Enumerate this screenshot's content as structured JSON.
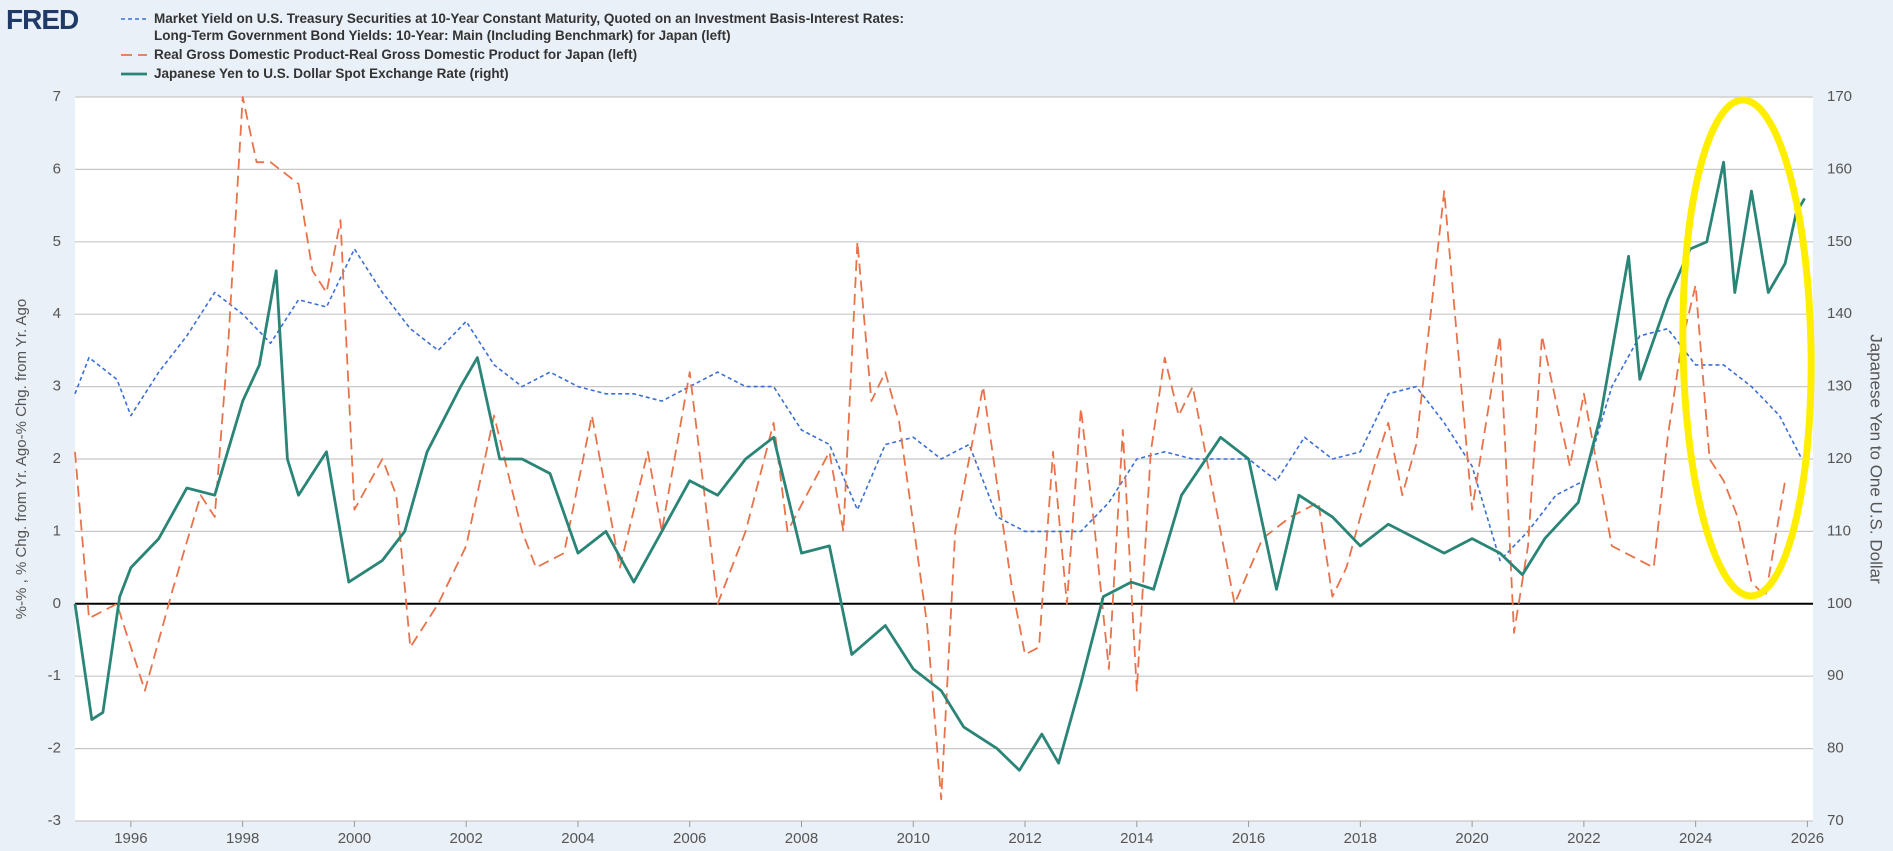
{
  "logo": "FRED",
  "chart_data": {
    "type": "line",
    "left_axis_label": "%-% , % Chg. from Yr. Ago-% Chg. from Yr. Ago",
    "right_axis_label": "Japanese Yen to One U.S. Dollar",
    "xlim": [
      1995.0,
      2026.1
    ],
    "xticks": [
      1996,
      1998,
      2000,
      2002,
      2004,
      2006,
      2008,
      2010,
      2012,
      2014,
      2016,
      2018,
      2020,
      2022,
      2024,
      2026
    ],
    "ylim": [
      -3,
      7
    ],
    "yticks": [
      -3,
      -2,
      -1,
      0,
      1,
      2,
      3,
      4,
      5,
      6,
      7
    ],
    "y2lim": [
      70,
      170
    ],
    "y2ticks": [
      70,
      80,
      90,
      100,
      110,
      120,
      130,
      140,
      150,
      160,
      170
    ],
    "grid": true,
    "series": [
      {
        "name": "Market Yield on U.S. Treasury Securities at 10-Year Constant Maturity, Quoted on an Investment Basis-Interest Rates: Long-Term Government Bond Yields: 10-Year: Main (Including Benchmark) for Japan (left)",
        "color": "#3b6fd8",
        "line_style": "dotted",
        "axis": "y",
        "x": [
          1995.0,
          1995.25,
          1995.75,
          1996.0,
          1996.5,
          1997.0,
          1997.5,
          1998.0,
          1998.5,
          1999.0,
          1999.5,
          2000.0,
          2000.5,
          2001.0,
          2001.5,
          2002.0,
          2002.5,
          2003.0,
          2003.5,
          2004.0,
          2004.5,
          2005.0,
          2005.5,
          2006.0,
          2006.5,
          2007.0,
          2007.5,
          2008.0,
          2008.5,
          2009.0,
          2009.5,
          2010.0,
          2010.5,
          2011.0,
          2011.5,
          2012.0,
          2012.5,
          2013.0,
          2013.5,
          2014.0,
          2014.5,
          2015.0,
          2015.5,
          2016.0,
          2016.5,
          2017.0,
          2017.5,
          2018.0,
          2018.5,
          2019.0,
          2019.5,
          2020.0,
          2020.5,
          2021.0,
          2021.5,
          2022.0,
          2022.5,
          2023.0,
          2023.5,
          2024.0,
          2024.5,
          2025.0,
          2025.5,
          2025.9
        ],
        "values": [
          2.9,
          3.4,
          3.1,
          2.6,
          3.2,
          3.7,
          4.3,
          4.0,
          3.6,
          4.2,
          4.1,
          4.9,
          4.3,
          3.8,
          3.5,
          3.9,
          3.3,
          3.0,
          3.2,
          3.0,
          2.9,
          2.9,
          2.8,
          3.0,
          3.2,
          3.0,
          3.0,
          2.4,
          2.2,
          1.3,
          2.2,
          2.3,
          2.0,
          2.2,
          1.2,
          1.0,
          1.0,
          1.0,
          1.4,
          2.0,
          2.1,
          2.0,
          2.0,
          2.0,
          1.7,
          2.3,
          2.0,
          2.1,
          2.9,
          3.0,
          2.5,
          1.9,
          0.6,
          1.0,
          1.5,
          1.7,
          3.0,
          3.7,
          3.8,
          3.3,
          3.3,
          3.0,
          2.6,
          2.0
        ]
      },
      {
        "name": "Real Gross Domestic Product-Real Gross Domestic Product for Japan (left)",
        "color": "#e8734a",
        "line_style": "dashed",
        "axis": "y",
        "x": [
          1995.0,
          1995.25,
          1995.75,
          1996.25,
          1996.75,
          1997.25,
          1997.5,
          1997.75,
          1998.0,
          1998.25,
          1998.5,
          1999.0,
          1999.25,
          1999.5,
          1999.75,
          2000.0,
          2000.5,
          2000.75,
          2001.0,
          2001.5,
          2002.0,
          2002.5,
          2003.0,
          2003.25,
          2003.75,
          2004.25,
          2004.75,
          2005.25,
          2005.5,
          2006.0,
          2006.5,
          2007.0,
          2007.5,
          2007.75,
          2008.5,
          2008.75,
          2009.0,
          2009.25,
          2009.5,
          2009.75,
          2010.0,
          2010.25,
          2010.5,
          2010.75,
          2011.25,
          2011.75,
          2012.0,
          2012.25,
          2012.5,
          2012.75,
          2013.0,
          2013.25,
          2013.5,
          2013.75,
          2014.0,
          2014.25,
          2014.5,
          2014.75,
          2015.0,
          2015.5,
          2015.75,
          2016.25,
          2016.75,
          2017.25,
          2017.5,
          2017.75,
          2018.25,
          2018.5,
          2018.75,
          2019.0,
          2019.5,
          2019.75,
          2020.0,
          2020.5,
          2020.75,
          2021.0,
          2021.25,
          2021.5,
          2021.75,
          2022.0,
          2022.5,
          2023.0,
          2023.25,
          2023.5,
          2023.75,
          2024.0,
          2024.25,
          2024.5,
          2024.75,
          2025.0,
          2025.25,
          2025.6
        ],
        "values": [
          2.1,
          -0.2,
          0.0,
          -1.2,
          0.2,
          1.5,
          1.2,
          3.7,
          7.0,
          6.1,
          6.1,
          5.8,
          4.6,
          4.3,
          5.3,
          1.3,
          2.0,
          1.5,
          -0.6,
          0.0,
          0.8,
          2.6,
          1.0,
          0.5,
          0.7,
          2.6,
          0.5,
          2.1,
          1.0,
          3.2,
          0.0,
          1.0,
          2.5,
          1.0,
          2.1,
          1.0,
          5.0,
          2.8,
          3.2,
          2.5,
          1.1,
          -0.3,
          -2.7,
          1.0,
          3.0,
          0.3,
          -0.7,
          -0.6,
          2.1,
          0.0,
          2.7,
          1.0,
          -0.9,
          2.4,
          -1.2,
          2.1,
          3.4,
          2.6,
          3.0,
          1.0,
          0.0,
          0.9,
          1.2,
          1.4,
          0.1,
          0.5,
          1.9,
          2.5,
          1.5,
          2.2,
          5.7,
          3.5,
          1.3,
          3.7,
          -0.4,
          0.8,
          3.7,
          2.8,
          1.9,
          2.9,
          0.8,
          0.6,
          0.5,
          2.3,
          3.6,
          4.4,
          2.0,
          1.7,
          1.2,
          0.3,
          0.1,
          1.7
        ]
      },
      {
        "name": "Japanese Yen to U.S. Dollar Spot Exchange Rate (right)",
        "color": "#2a8577",
        "line_style": "solid",
        "axis": "y2",
        "x": [
          1995.0,
          1995.3,
          1995.5,
          1995.8,
          1996.0,
          1996.5,
          1997.0,
          1997.5,
          1998.0,
          1998.3,
          1998.6,
          1998.8,
          1999.0,
          1999.5,
          1999.9,
          2000.5,
          2000.9,
          2001.3,
          2001.9,
          2002.2,
          2002.6,
          2003.0,
          2003.5,
          2004.0,
          2004.5,
          2005.0,
          2005.5,
          2006.0,
          2006.5,
          2007.0,
          2007.5,
          2008.0,
          2008.5,
          2008.9,
          2009.5,
          2010.0,
          2010.5,
          2010.9,
          2011.5,
          2011.9,
          2012.3,
          2012.6,
          2013.0,
          2013.4,
          2013.9,
          2014.3,
          2014.8,
          2015.5,
          2016.0,
          2016.5,
          2016.9,
          2017.5,
          2018.0,
          2018.5,
          2019.0,
          2019.5,
          2020.0,
          2020.5,
          2020.9,
          2021.3,
          2021.9,
          2022.3,
          2022.8,
          2023.0,
          2023.5,
          2023.9,
          2024.2,
          2024.5,
          2024.7,
          2025.0,
          2025.3,
          2025.6,
          2025.8,
          2025.95
        ],
        "values": [
          100,
          84,
          85,
          101,
          105,
          109,
          116,
          115,
          128,
          133,
          146,
          120,
          115,
          121,
          103,
          106,
          110,
          121,
          130,
          134,
          120,
          120,
          118,
          107,
          110,
          103,
          110,
          117,
          115,
          120,
          123,
          107,
          108,
          93,
          97,
          91,
          88,
          83,
          80,
          77,
          82,
          78,
          89,
          101,
          103,
          102,
          115,
          123,
          120,
          102,
          115,
          112,
          108,
          111,
          109,
          107,
          109,
          107,
          104,
          109,
          114,
          126,
          148,
          131,
          142,
          149,
          150,
          161,
          143,
          157,
          143,
          147,
          154,
          156
        ]
      }
    ]
  }
}
